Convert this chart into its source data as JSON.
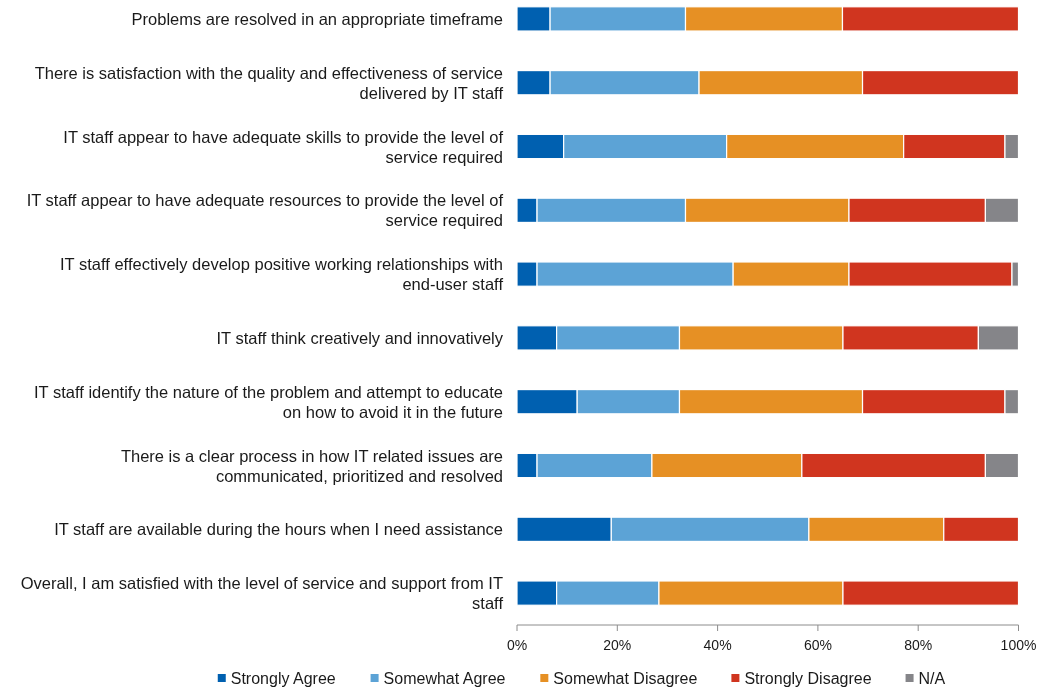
{
  "chart_data": {
    "type": "bar",
    "orientation": "horizontal",
    "stacked": true,
    "categories": [
      "Problems are resolved in an appropriate timeframe",
      "There is satisfaction with the quality and effectiveness of service delivered by IT staff",
      "IT staff appear to have adequate skills to provide the level of service required",
      "IT staff appear to have adequate resources to provide the level of service required",
      "IT staff effectively develop positive working relationships with end-user staff",
      "IT staff think creatively and innovatively",
      "IT staff identify the nature of the problem and attempt to educate on how to avoid it in the future",
      "There is a clear process in how IT related issues are communicated, prioritized and resolved",
      "IT staff are available during the hours when I need assistance",
      "Overall, I am satisfied with the level of service and support from IT staff"
    ],
    "series": [
      {
        "name": "Strongly Agree",
        "color": "#0060b0",
        "values": [
          6.6,
          6.6,
          9.3,
          4.0,
          4.0,
          7.9,
          12.0,
          4.0,
          18.8,
          7.9
        ]
      },
      {
        "name": "Somewhat Agree",
        "color": "#5ca3d6",
        "values": [
          27.0,
          29.7,
          32.5,
          29.6,
          39.1,
          24.5,
          20.4,
          22.9,
          39.4,
          20.4
        ]
      },
      {
        "name": "Somewhat Disagree",
        "color": "#e69024",
        "values": [
          31.3,
          32.6,
          35.3,
          32.6,
          23.1,
          32.6,
          36.5,
          29.9,
          26.9,
          36.7
        ]
      },
      {
        "name": "Strongly Disagree",
        "color": "#d0351f",
        "values": [
          35.1,
          31.1,
          20.2,
          27.2,
          32.5,
          27.0,
          28.4,
          36.6,
          14.9,
          35.0
        ]
      },
      {
        "name": "N/A",
        "color": "#858589",
        "values": [
          null,
          null,
          2.7,
          6.6,
          1.3,
          8.0,
          2.7,
          6.6,
          null,
          null
        ]
      }
    ],
    "xlim": [
      0,
      100
    ],
    "xticks": [
      {
        "value": 0,
        "label": "0%"
      },
      {
        "value": 20,
        "label": "20%"
      },
      {
        "value": 40,
        "label": "40%"
      },
      {
        "value": 60,
        "label": "60%"
      },
      {
        "value": 80,
        "label": "80%"
      },
      {
        "value": 100,
        "label": "100%"
      }
    ],
    "grid": false,
    "legend": "bottom"
  }
}
